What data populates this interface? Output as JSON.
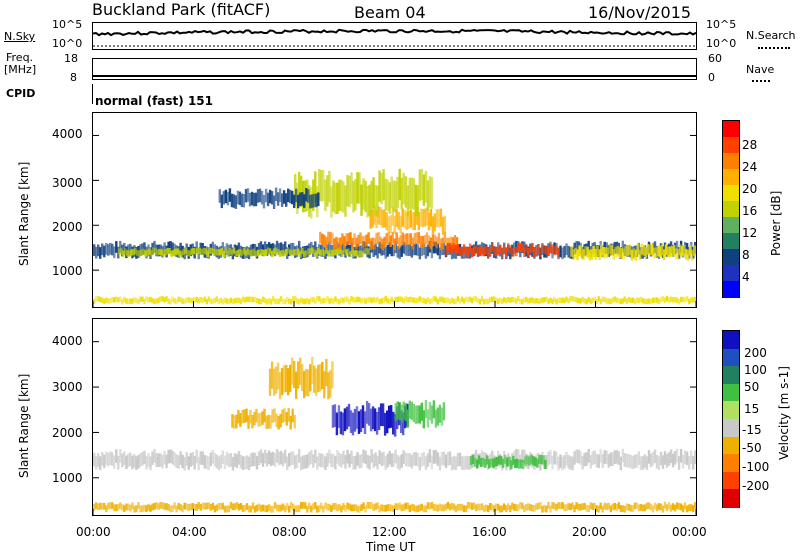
{
  "header": {
    "station": "Buckland Park (fitACF)",
    "beam": "Beam 04",
    "date": "16/Nov/2015"
  },
  "top_panels": {
    "nsky_label": "N.Sky",
    "nsky_ticks": [
      "10^5",
      "10^0"
    ],
    "nsearch_label": "N.Search",
    "nsearch_ticks": [
      "10^5",
      "10^0"
    ],
    "freq_label_1": "Freq.",
    "freq_label_2": "[MHz]",
    "freq_ticks": [
      "18",
      "8"
    ],
    "nave_label": "Nave",
    "nave_ticks": [
      "60",
      "0"
    ],
    "cpid_label": "CPID",
    "cpid_value": "normal (fast) 151"
  },
  "chart_data": [
    {
      "type": "heatmap",
      "title": "",
      "xlabel": "Time UT",
      "ylabel": "Slant Range [km]",
      "y_ticks": [
        "4000",
        "3000",
        "2000",
        "1000"
      ],
      "x_ticks": [
        "00:00",
        "04:00",
        "08:00",
        "12:00",
        "16:00",
        "20:00",
        "00:00"
      ],
      "ylim": [
        180,
        4500
      ],
      "colorbar_label": "Power [dB]",
      "colorbar_ticks": [
        "28",
        "24",
        "20",
        "16",
        "12",
        "8",
        "4"
      ],
      "colorbar_colors": [
        "#ff0000",
        "#ff4000",
        "#ff8000",
        "#ffb000",
        "#f0e000",
        "#c0d000",
        "#60b060",
        "#208060",
        "#104080",
        "#2030c0",
        "#0000ff"
      ],
      "bands": [
        {
          "t0": 0.0,
          "t1": 24.0,
          "r": 1450,
          "w": 260,
          "level": 8
        },
        {
          "t0": 1.0,
          "t1": 11.0,
          "r": 1400,
          "w": 140,
          "level": 5
        },
        {
          "t0": 9.0,
          "t1": 14.5,
          "r": 1650,
          "w": 260,
          "level": 2
        },
        {
          "t0": 11.0,
          "t1": 14.0,
          "r": 2100,
          "w": 400,
          "level": 3
        },
        {
          "t0": 14.0,
          "t1": 18.5,
          "r": 1450,
          "w": 200,
          "level": 1
        },
        {
          "t0": 8.0,
          "t1": 13.5,
          "r": 2700,
          "w": 700,
          "level": 5
        },
        {
          "t0": 19.0,
          "t1": 24.0,
          "r": 1400,
          "w": 240,
          "level": 4
        },
        {
          "t0": 5.0,
          "t1": 9.0,
          "r": 2600,
          "w": 300,
          "level": 8
        },
        {
          "t0": 0.0,
          "t1": 24.0,
          "r": 330,
          "w": 120,
          "level": 4
        }
      ]
    },
    {
      "type": "heatmap",
      "title": "",
      "xlabel": "Time UT",
      "ylabel": "Slant Range [km]",
      "y_ticks": [
        "4000",
        "3000",
        "2000",
        "1000"
      ],
      "x_ticks": [
        "00:00",
        "04:00",
        "08:00",
        "12:00",
        "16:00",
        "20:00",
        "00:00"
      ],
      "ylim": [
        180,
        4500
      ],
      "colorbar_label": "Velocity [m s-1]",
      "colorbar_ticks": [
        "200",
        "100",
        "50",
        "15",
        "-15",
        "-50",
        "-100",
        "-200"
      ],
      "colorbar_colors": [
        "#1010c0",
        "#2050c0",
        "#208060",
        "#40c040",
        "#b0e060",
        "#c8c8c8",
        "#f0b000",
        "#ff8000",
        "#ff4000",
        "#e00000"
      ],
      "bands": [
        {
          "t0": 0.0,
          "t1": 24.0,
          "r": 1400,
          "w": 300,
          "level": 5
        },
        {
          "t0": 9.5,
          "t1": 12.5,
          "r": 2300,
          "w": 500,
          "level": 0
        },
        {
          "t0": 12.0,
          "t1": 14.0,
          "r": 2400,
          "w": 400,
          "level": 3
        },
        {
          "t0": 7.0,
          "t1": 9.5,
          "r": 3200,
          "w": 600,
          "level": 6
        },
        {
          "t0": 15.0,
          "t1": 18.0,
          "r": 1350,
          "w": 200,
          "level": 3
        },
        {
          "t0": 5.5,
          "t1": 8.0,
          "r": 2300,
          "w": 300,
          "level": 6
        },
        {
          "t0": 0.0,
          "t1": 24.0,
          "r": 350,
          "w": 150,
          "level": 6
        }
      ]
    }
  ]
}
